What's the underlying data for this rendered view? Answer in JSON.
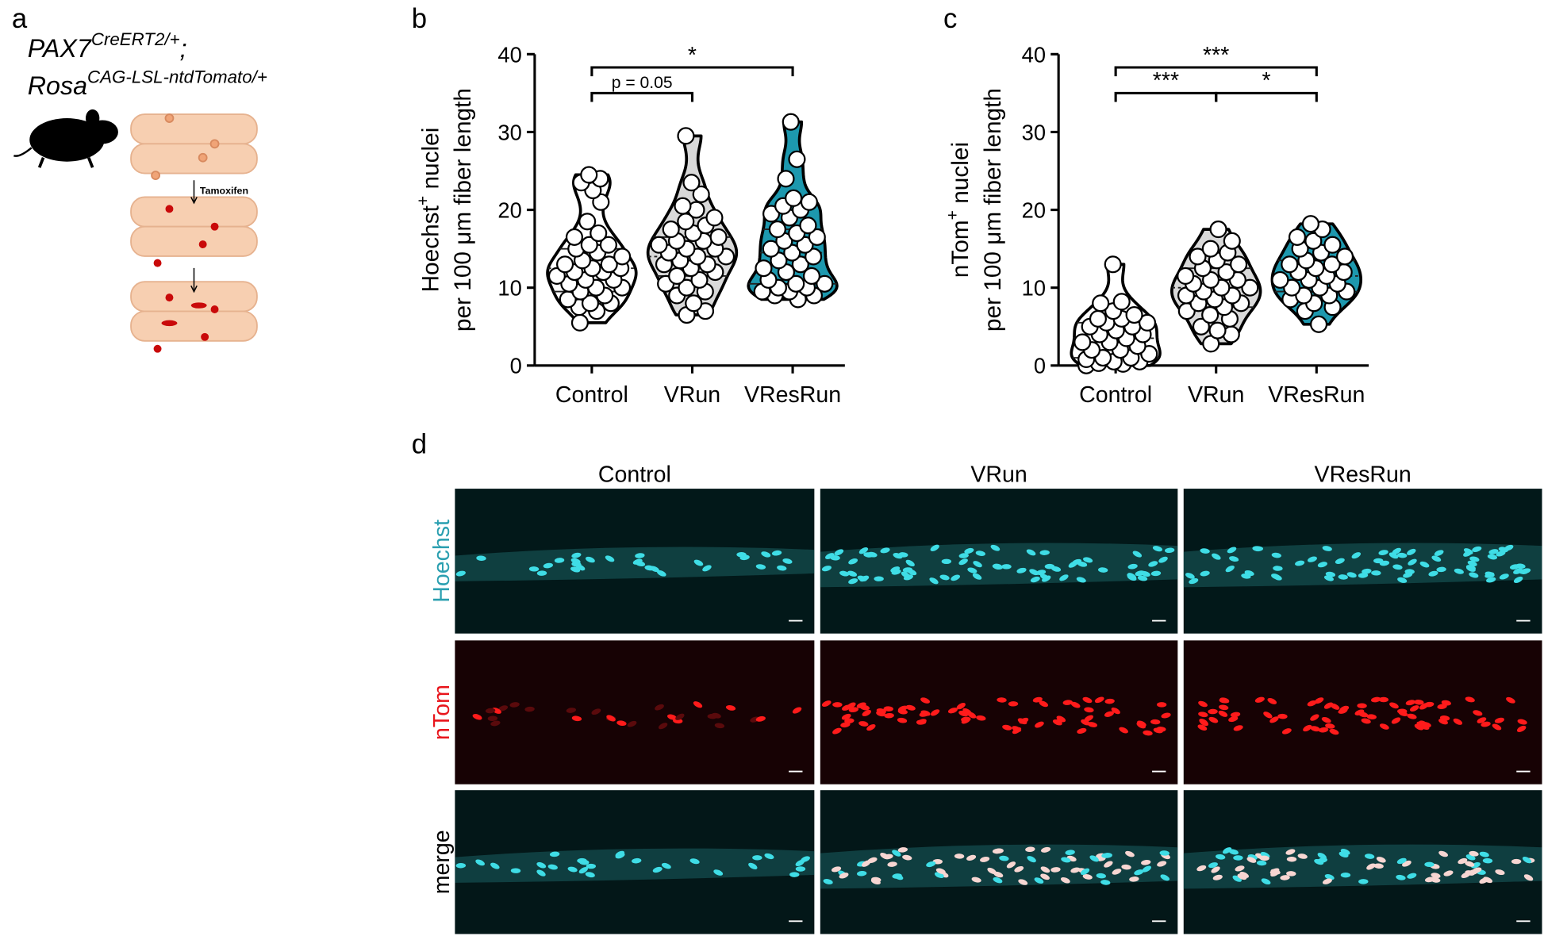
{
  "panel_a": {
    "label": "a",
    "genotype": [
      {
        "name": "PAX7",
        "sup": "CreERT2/+",
        "suffix": ";"
      },
      {
        "name": "Rosa",
        "sup": "CAG-LSL-ntdTomato/+"
      }
    ],
    "treatment": "Tamoxifen"
  },
  "chart_data": [
    {
      "type": "violin",
      "panel_label": "b",
      "ylabel": {
        "name": "Hoechst",
        "sup": "+",
        "rest": " nuclei",
        "line2": "per 100 μm fiber length"
      },
      "categories": [
        "Control",
        "VRun",
        "VResRun"
      ],
      "groups": [
        {
          "color": "#ffffff",
          "quartiles": [
            9.5,
            12.5,
            15
          ],
          "values": [
            5.5,
            7,
            7.5,
            8,
            8,
            8.5,
            9,
            9.5,
            10,
            10,
            10.5,
            11,
            11,
            11.5,
            12,
            12,
            12.5,
            12.5,
            13,
            13,
            13.5,
            14,
            14.5,
            15,
            15.5,
            15.5,
            16.5,
            17,
            18.5,
            21,
            22.5,
            23.5,
            24,
            24.5
          ]
        },
        {
          "color": "#d9d9d9",
          "quartiles": [
            11.5,
            14,
            16.5
          ],
          "values": [
            6.5,
            7,
            8,
            9,
            9.5,
            10,
            10.5,
            11,
            11.5,
            12,
            12.5,
            13,
            13,
            13.5,
            14,
            14,
            14.5,
            15,
            15,
            15.5,
            16,
            16,
            16.5,
            17,
            17.5,
            18,
            18.5,
            19,
            20,
            20.5,
            22,
            23.5,
            29.5
          ]
        },
        {
          "color": "#1d98ae",
          "quartiles": [
            10.5,
            14.5,
            17.5
          ],
          "values": [
            8.5,
            9,
            9,
            9.5,
            9.5,
            10,
            10,
            10.5,
            10.5,
            11,
            11.5,
            12,
            12.5,
            13,
            13.5,
            14,
            14.5,
            15,
            15.5,
            16,
            16.5,
            17,
            17.5,
            18,
            19,
            19.5,
            20,
            20.5,
            21,
            21.5,
            24,
            26.5,
            31.3
          ]
        }
      ],
      "point_color": "#ffffff",
      "ylim": [
        0,
        40
      ],
      "yticks": [
        0,
        10,
        20,
        30,
        40
      ],
      "brackets": [
        {
          "label": "p = 0.05",
          "y": 35,
          "from": 0,
          "to": 1
        },
        {
          "label": "*",
          "y": 38.3,
          "from": 0,
          "to": 2
        }
      ]
    },
    {
      "type": "violin",
      "panel_label": "c",
      "ylabel": {
        "name": "nTom",
        "sup": "+",
        "rest": " nuclei",
        "line2": "per 100 μm fiber length"
      },
      "categories": [
        "Control",
        "VRun",
        "VResRun"
      ],
      "groups": [
        {
          "color": "#ffffff",
          "quartiles": [
            1,
            3.5,
            5.5
          ],
          "values": [
            0,
            0.2,
            0.3,
            0.5,
            0.5,
            0.8,
            1,
            1,
            1.5,
            2,
            2,
            2.5,
            3,
            3,
            3.5,
            4,
            4,
            4.5,
            5,
            5,
            5.5,
            5.5,
            6,
            6,
            6.5,
            7,
            8,
            8.2,
            13
          ]
        },
        {
          "color": "#d9d9d9",
          "quartiles": [
            7.5,
            10,
            12.5
          ],
          "values": [
            2.8,
            4,
            4.5,
            5,
            6,
            6.5,
            7,
            7.5,
            8,
            8,
            8.5,
            9,
            9,
            9.5,
            10,
            10,
            10.5,
            11,
            11,
            11.5,
            12,
            12.5,
            13,
            13.5,
            14,
            14.5,
            15,
            16,
            17.5
          ]
        },
        {
          "color": "#1d98ae",
          "quartiles": [
            9.5,
            11.5,
            13.5
          ],
          "values": [
            5.3,
            7,
            7.5,
            8,
            8.5,
            9,
            9,
            9.5,
            10,
            10,
            10.5,
            11,
            11,
            11.5,
            12,
            12,
            12.5,
            13,
            13,
            13.5,
            14,
            14.5,
            15,
            15.5,
            16,
            16.5,
            17.5,
            18.2
          ]
        }
      ],
      "point_color": "#ffffff",
      "ylim": [
        0,
        40
      ],
      "yticks": [
        0,
        10,
        20,
        30,
        40
      ],
      "brackets": [
        {
          "label": "***",
          "y": 38.3,
          "from": 0,
          "to": 2
        },
        {
          "label": "***",
          "y": 35,
          "from": 0,
          "to": 1
        },
        {
          "label": "*",
          "y": 35,
          "from": 1,
          "to": 2
        }
      ]
    }
  ],
  "panel_d": {
    "label": "d",
    "columns": [
      "Control",
      "VRun",
      "VResRun"
    ],
    "rows": [
      {
        "name": "Hoechst",
        "color": "#2a9fb0"
      },
      {
        "name": "nTom",
        "color": "#e8141b"
      },
      {
        "name": "merge",
        "color": "#000000"
      }
    ]
  }
}
